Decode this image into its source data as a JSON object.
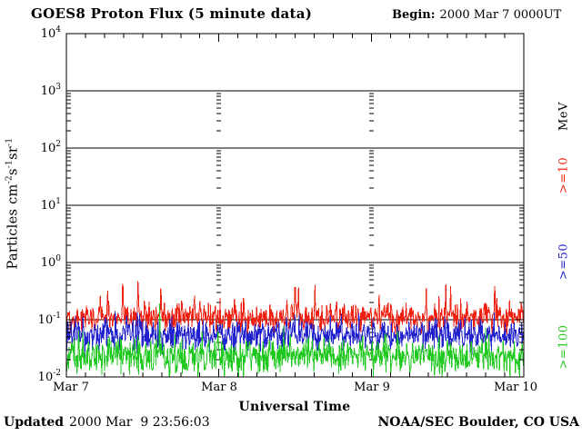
{
  "header": {
    "title": "GOES8 Proton Flux (5 minute data)",
    "begin_label": "Begin:",
    "begin_value": "2000 Mar 7 0000UT"
  },
  "footer": {
    "updated_label": "Updated",
    "updated_value": "2000 Mar  9 23:56:03",
    "source": "NOAA/SEC Boulder, CO USA"
  },
  "axes": {
    "x_title": "Universal Time",
    "x_ticks": [
      "Mar 7",
      "Mar 8",
      "Mar 9",
      "Mar 10"
    ],
    "y_title": {
      "p1": "Particles cm",
      "e1": "-2",
      "p2": "s",
      "e2": "-1",
      "p3": "sr",
      "e3": "-1"
    }
  },
  "right_labels": {
    "unit": "MeV"
  },
  "chart_data": {
    "type": "line",
    "title": "GOES8 Proton Flux (5 minute data)",
    "instrument": "GOES8",
    "begin": "2000 Mar 7 0000UT",
    "updated": "2000 Mar 9 23:56:03",
    "sample_interval_minutes": 5,
    "x_axis": {
      "label": "Universal Time",
      "tick_labels": [
        "Mar 7",
        "Mar 8",
        "Mar 9",
        "Mar 10"
      ],
      "range_days": [
        0,
        3
      ],
      "minor_tick_hours": 3
    },
    "y_axis": {
      "label": "Particles cm-2 s-1 sr-1",
      "scale": "log",
      "range": [
        0.01,
        10000
      ],
      "tick_exponents": [
        4,
        3,
        2,
        1,
        0,
        -1,
        -2
      ]
    },
    "grid": {
      "horizontal_lines_at": [
        1000,
        100,
        10,
        1,
        0.1
      ],
      "vertical_dashed_at_days": [
        1,
        2
      ],
      "legend_position": "right-outside-rotated"
    },
    "seed": 20000307,
    "series": [
      {
        "label": ">=10",
        "unit": "MeV",
        "color": "#ee2010",
        "typical_flux": 0.11,
        "typical_range": [
          0.07,
          0.3
        ],
        "baseline_log10": -0.96,
        "noise_dex": 0.13,
        "spike_prob": 0.012,
        "spikes": [
          {
            "t": 0.27,
            "v": 0.45
          },
          {
            "t": 0.37,
            "v": 0.65
          },
          {
            "t": 0.47,
            "v": 0.58
          },
          {
            "t": 0.62,
            "v": 0.5
          },
          {
            "t": 0.84,
            "v": 0.38
          },
          {
            "t": 1.5,
            "v": 0.6
          },
          {
            "t": 1.63,
            "v": 0.45
          },
          {
            "t": 2.05,
            "v": 0.36
          },
          {
            "t": 2.36,
            "v": 0.4
          },
          {
            "t": 2.52,
            "v": 0.42
          },
          {
            "t": 2.81,
            "v": 0.55
          }
        ]
      },
      {
        "label": ">=50",
        "unit": "MeV",
        "color": "#2222cc",
        "typical_flux": 0.055,
        "typical_range": [
          0.03,
          0.13
        ],
        "baseline_log10": -1.26,
        "noise_dex": 0.14,
        "spike_prob": 0.01,
        "spikes": []
      },
      {
        "label": ">=100",
        "unit": "MeV",
        "color": "#22c822",
        "typical_flux": 0.022,
        "typical_range": [
          0.012,
          0.05
        ],
        "baseline_log10": -1.63,
        "noise_dex": 0.16,
        "spike_prob": 0.01,
        "spikes": []
      }
    ]
  }
}
